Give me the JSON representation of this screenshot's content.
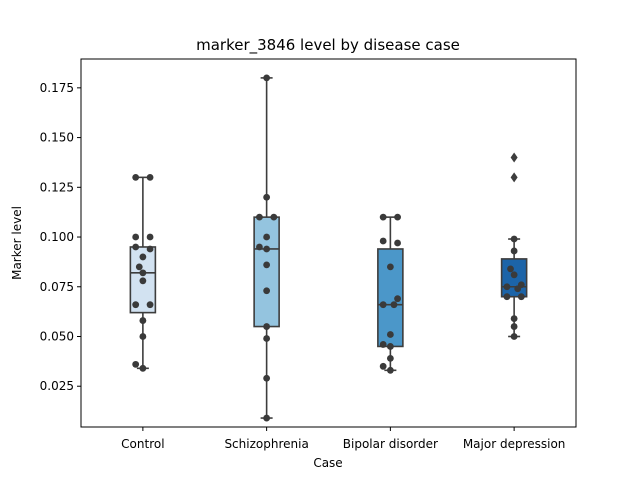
{
  "chart_data": {
    "type": "box",
    "title": "marker_3846 level by disease case",
    "xlabel": "Case",
    "ylabel": "Marker level",
    "ylim": [
      0.0045,
      0.1895
    ],
    "yticks": [
      0.025,
      0.05,
      0.075,
      0.1,
      0.125,
      0.15,
      0.175
    ],
    "ytick_labels": [
      "0.025",
      "0.050",
      "0.075",
      "0.100",
      "0.125",
      "0.150",
      "0.175"
    ],
    "categories": [
      "Control",
      "Schizophrenia",
      "Bipolar disorder",
      "Major depression"
    ],
    "colors": [
      "#d2e2f1",
      "#94c4df",
      "#4b97c9",
      "#1c64a8"
    ],
    "boxes": [
      {
        "q1": 0.062,
        "median": 0.082,
        "q3": 0.095,
        "whisker_low": 0.034,
        "whisker_high": 0.13,
        "outliers": []
      },
      {
        "q1": 0.055,
        "median": 0.094,
        "q3": 0.11,
        "whisker_low": 0.009,
        "whisker_high": 0.18,
        "outliers": []
      },
      {
        "q1": 0.045,
        "median": 0.066,
        "q3": 0.094,
        "whisker_low": 0.033,
        "whisker_high": 0.11,
        "outliers": []
      },
      {
        "q1": 0.07,
        "median": 0.075,
        "q3": 0.089,
        "whisker_low": 0.05,
        "whisker_high": 0.099,
        "outliers": [
          0.13,
          0.14
        ]
      }
    ],
    "points": [
      [
        {
          "dx": -0.3,
          "y": 0.13
        },
        {
          "dx": 0.3,
          "y": 0.13
        },
        {
          "dx": -0.3,
          "y": 0.1
        },
        {
          "dx": 0.3,
          "y": 0.1
        },
        {
          "dx": -0.3,
          "y": 0.095
        },
        {
          "dx": 0.3,
          "y": 0.094
        },
        {
          "dx": 0.0,
          "y": 0.09
        },
        {
          "dx": -0.15,
          "y": 0.085
        },
        {
          "dx": 0.0,
          "y": 0.082
        },
        {
          "dx": 0.0,
          "y": 0.078
        },
        {
          "dx": -0.3,
          "y": 0.066
        },
        {
          "dx": 0.3,
          "y": 0.066
        },
        {
          "dx": 0.0,
          "y": 0.058
        },
        {
          "dx": 0.0,
          "y": 0.05
        },
        {
          "dx": -0.3,
          "y": 0.036
        },
        {
          "dx": 0.0,
          "y": 0.034
        }
      ],
      [
        {
          "dx": 0.0,
          "y": 0.18
        },
        {
          "dx": 0.0,
          "y": 0.12
        },
        {
          "dx": -0.3,
          "y": 0.11
        },
        {
          "dx": 0.3,
          "y": 0.11
        },
        {
          "dx": 0.0,
          "y": 0.1
        },
        {
          "dx": -0.3,
          "y": 0.095
        },
        {
          "dx": 0.0,
          "y": 0.094
        },
        {
          "dx": 0.0,
          "y": 0.086
        },
        {
          "dx": 0.0,
          "y": 0.073
        },
        {
          "dx": 0.0,
          "y": 0.055
        },
        {
          "dx": 0.0,
          "y": 0.049
        },
        {
          "dx": 0.0,
          "y": 0.029
        },
        {
          "dx": 0.0,
          "y": 0.009
        }
      ],
      [
        {
          "dx": -0.3,
          "y": 0.11
        },
        {
          "dx": 0.3,
          "y": 0.11
        },
        {
          "dx": -0.3,
          "y": 0.098
        },
        {
          "dx": 0.3,
          "y": 0.097
        },
        {
          "dx": 0.0,
          "y": 0.085
        },
        {
          "dx": 0.3,
          "y": 0.069
        },
        {
          "dx": -0.3,
          "y": 0.066
        },
        {
          "dx": 0.15,
          "y": 0.066
        },
        {
          "dx": 0.0,
          "y": 0.051
        },
        {
          "dx": -0.3,
          "y": 0.046
        },
        {
          "dx": 0.0,
          "y": 0.045
        },
        {
          "dx": 0.0,
          "y": 0.039
        },
        {
          "dx": -0.3,
          "y": 0.035
        },
        {
          "dx": 0.0,
          "y": 0.033
        }
      ],
      [
        {
          "dx": 0.0,
          "y": 0.099
        },
        {
          "dx": 0.0,
          "y": 0.093
        },
        {
          "dx": -0.15,
          "y": 0.084
        },
        {
          "dx": 0.0,
          "y": 0.081
        },
        {
          "dx": 0.3,
          "y": 0.076
        },
        {
          "dx": -0.3,
          "y": 0.075
        },
        {
          "dx": 0.15,
          "y": 0.074
        },
        {
          "dx": -0.3,
          "y": 0.07
        },
        {
          "dx": 0.3,
          "y": 0.07
        },
        {
          "dx": 0.0,
          "y": 0.059
        },
        {
          "dx": 0.0,
          "y": 0.055
        },
        {
          "dx": 0.0,
          "y": 0.05
        }
      ]
    ],
    "grid": false,
    "legend": false
  }
}
